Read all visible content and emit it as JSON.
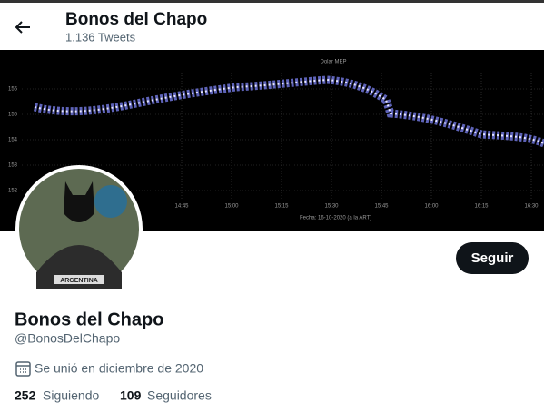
{
  "header": {
    "name": "Bonos del Chapo",
    "tweets": "1.136 Tweets"
  },
  "banner": {
    "title": "Dolar MEP",
    "yticks": [
      "156",
      "155",
      "154",
      "153",
      "152"
    ],
    "xticks": [
      "14:45",
      "15:00",
      "15:15",
      "15:30",
      "15:45",
      "16:00",
      "16:15",
      "16:30"
    ],
    "footer": "Fecha: 16-10-2020 (a la ART)"
  },
  "avatar": {
    "caption": "ARGENTINA"
  },
  "button": "Seguir",
  "profile": {
    "name": "Bonos del Chapo",
    "handle": "@BonosDelChapo",
    "joined": "Se unió en diciembre de 2020",
    "following": {
      "count": "252",
      "label": "Siguiendo"
    },
    "followers": {
      "count": "109",
      "label": "Seguidores"
    }
  }
}
